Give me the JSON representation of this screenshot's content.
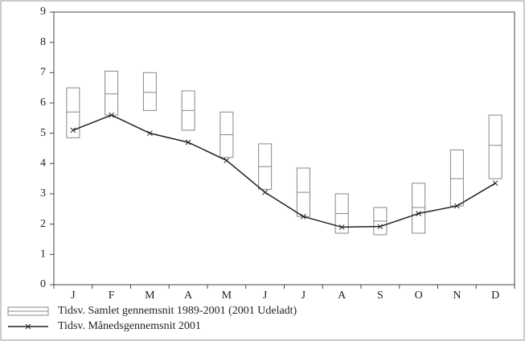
{
  "chart_data": {
    "type": "box",
    "categories": [
      "J",
      "F",
      "M",
      "A",
      "M",
      "J",
      "J",
      "A",
      "S",
      "O",
      "N",
      "D"
    ],
    "ylim": [
      0,
      9
    ],
    "yticks": [
      0,
      1,
      2,
      3,
      4,
      5,
      6,
      7,
      8,
      9
    ],
    "series": [
      {
        "name": "Tidsv. Samlet gennemsnit  1989-2001 (2001 Udeladt)",
        "color": "#888888",
        "low": [
          4.85,
          5.6,
          5.75,
          5.1,
          4.2,
          3.15,
          2.25,
          1.7,
          1.65,
          1.7,
          2.6,
          3.5
        ],
        "mid": [
          5.7,
          6.3,
          6.35,
          5.75,
          4.95,
          3.9,
          3.05,
          2.35,
          2.1,
          2.55,
          3.5,
          4.6
        ],
        "high": [
          6.5,
          7.05,
          7.0,
          6.4,
          5.7,
          4.65,
          3.85,
          3.0,
          2.55,
          3.35,
          4.45,
          5.6
        ]
      },
      {
        "name": "Tidsv. Månedsgennemsnit  2001",
        "color": "#222222",
        "values": [
          5.1,
          5.6,
          5.0,
          4.7,
          4.1,
          3.05,
          2.25,
          1.9,
          1.92,
          2.35,
          2.6,
          3.35
        ]
      }
    ]
  }
}
